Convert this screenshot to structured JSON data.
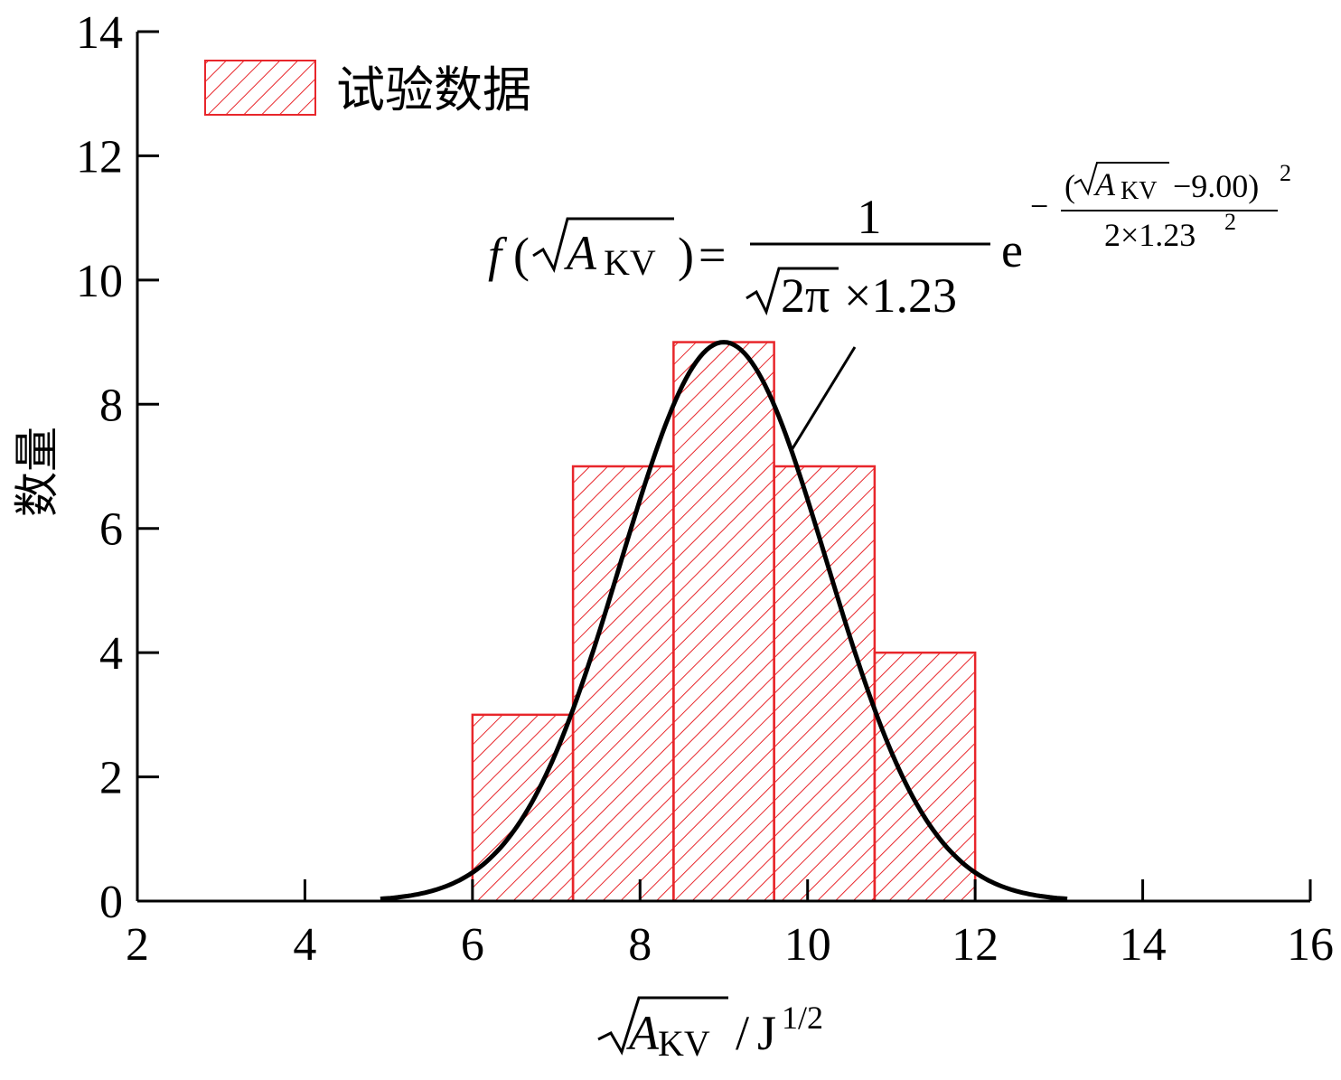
{
  "chart_data": {
    "type": "bar",
    "subtype": "histogram",
    "ylabel": "数量",
    "xlabel": {
      "symbol": "A",
      "subscript": "KV",
      "unit": "J",
      "unit_exponent": "1/2"
    },
    "xlim": [
      2,
      16
    ],
    "ylim": [
      0,
      14
    ],
    "xticks": [
      "2",
      "4",
      "6",
      "8",
      "10",
      "12",
      "14",
      "16"
    ],
    "yticks": [
      "0",
      "2",
      "4",
      "6",
      "8",
      "10",
      "12",
      "14"
    ],
    "bins": [
      {
        "x0": 6.0,
        "x1": 7.2,
        "count": 3
      },
      {
        "x0": 7.2,
        "x1": 8.4,
        "count": 7
      },
      {
        "x0": 8.4,
        "x1": 9.6,
        "count": 9
      },
      {
        "x0": 9.6,
        "x1": 10.8,
        "count": 7
      },
      {
        "x0": 10.8,
        "x1": 12.0,
        "count": 4
      }
    ],
    "series": [
      {
        "name": "试验数据",
        "type": "histogram",
        "color": "#e8262b",
        "hatch": "diagonal"
      }
    ],
    "fit_curve": {
      "type": "normal",
      "mean": 9.0,
      "sd": 1.23,
      "peak": 9.0,
      "x_range": [
        4.9,
        13.1
      ],
      "color": "#000000"
    },
    "legend": {
      "position": "top-left",
      "label": "试验数据"
    },
    "formula": {
      "lhs_f": "f",
      "symbol": "A",
      "subscript": "KV",
      "equals": "=",
      "numerator": "1",
      "den_inner": "2π",
      "den_rest": "×1.23",
      "base": "e",
      "exp_minus": "−",
      "exp_num_rest": "−9.00)",
      "exp_num_pow": "2",
      "exp_den": "2×1.23",
      "exp_den_pow": "2"
    },
    "grid": false
  }
}
